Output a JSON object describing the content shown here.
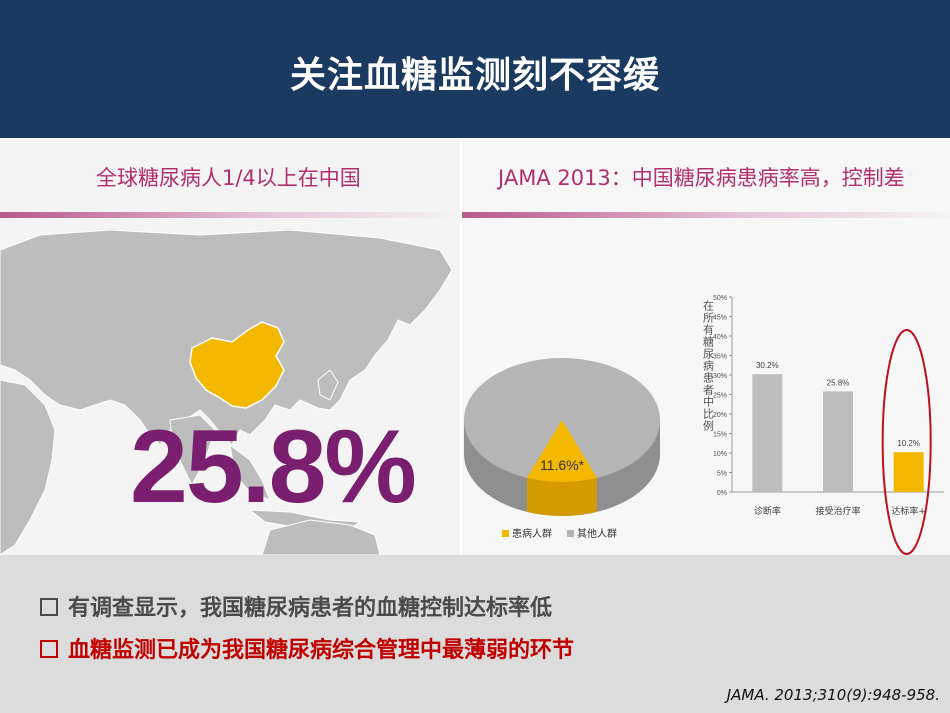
{
  "slide": {
    "title": "关注血糖监测刻不容缓"
  },
  "left_panel": {
    "title": "全球糖尿病人1/4以上在中国",
    "highlight_value": "25.8%",
    "colors": {
      "map_land": "#bdbdbd",
      "china": "#f5b800",
      "value": "#7a1e70"
    }
  },
  "right_panel": {
    "title": "JAMA 2013：中国糖尿病患病率高，控制差"
  },
  "chart_data": [
    {
      "type": "pie",
      "slices": [
        {
          "name": "患病人群",
          "value": 11.6,
          "label": "11.6%*",
          "color": "#f5b800"
        },
        {
          "name": "其他人群",
          "value": 88.4,
          "color": "#b5b5b5"
        }
      ],
      "legend": [
        "患病人群",
        "其他人群"
      ],
      "legend_position": "bottom"
    },
    {
      "type": "bar",
      "ylabel": "在所有糖尿病患者中比例",
      "categories": [
        "诊断率",
        "接受治疗率",
        "达标率+"
      ],
      "values": [
        30.2,
        25.8,
        10.2
      ],
      "data_labels": [
        "30.2%",
        "25.8%",
        "10.2%"
      ],
      "colors": [
        "#bdbdbd",
        "#bdbdbd",
        "#f5b800"
      ],
      "yticks": [
        "0%",
        "5%",
        "10%",
        "15%",
        "20%",
        "25%",
        "30%",
        "35%",
        "40%",
        "45%",
        "50%"
      ],
      "ylim": [
        0,
        50
      ],
      "highlight": "达标率+",
      "highlight_color": "#c0101f"
    }
  ],
  "bullets": [
    {
      "text": "有调查显示，我国糖尿病患者的血糖控制达标率低",
      "color": "#4a4a4a"
    },
    {
      "text": "血糖监测已成为我国糖尿病综合管理中最薄弱的环节",
      "color": "#c00000"
    }
  ],
  "citation": "JAMA. 2013;310(9):948-958."
}
